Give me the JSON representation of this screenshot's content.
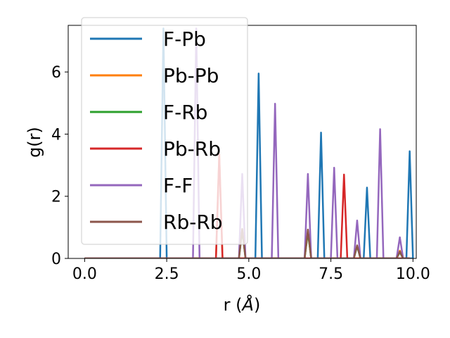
{
  "chart_data": {
    "type": "line",
    "title": "",
    "xlabel": "r (",
    "xlabel_unit": "Å",
    "xlabel_close": ")",
    "ylabel": "g(r)",
    "xlim": [
      -0.5,
      10.1
    ],
    "ylim": [
      0,
      7.5
    ],
    "xticks": [
      0.0,
      2.5,
      5.0,
      7.5,
      10.0
    ],
    "xtick_labels": [
      "0.0",
      "2.5",
      "5.0",
      "7.5",
      "10.0"
    ],
    "yticks": [
      0,
      2,
      4,
      6
    ],
    "ytick_labels": [
      "0",
      "2",
      "4",
      "6"
    ],
    "grid": false,
    "legend_position": "top-left",
    "series": [
      {
        "name": "F-Pb",
        "color": "#1f77b4",
        "peaks": [
          [
            2.4,
            7.4
          ],
          [
            5.3,
            5.95
          ],
          [
            7.2,
            4.05
          ],
          [
            8.6,
            2.28
          ],
          [
            9.9,
            3.45
          ]
        ]
      },
      {
        "name": "Pb-Pb",
        "color": "#ff7f0e",
        "peaks": [
          [
            4.1,
            3.35
          ],
          [
            6.8,
            0.85
          ],
          [
            9.6,
            0.25
          ]
        ]
      },
      {
        "name": "F-Rb",
        "color": "#2ca02c",
        "peaks": [
          [
            4.8,
            0.9
          ],
          [
            6.8,
            0.85
          ],
          [
            8.3,
            0.4
          ],
          [
            9.6,
            0.2
          ]
        ]
      },
      {
        "name": "Pb-Rb",
        "color": "#d62728",
        "peaks": [
          [
            4.1,
            3.35
          ],
          [
            7.9,
            2.7
          ]
        ]
      },
      {
        "name": "F-F",
        "color": "#9467bd",
        "peaks": [
          [
            3.4,
            7.4
          ],
          [
            4.8,
            2.72
          ],
          [
            5.8,
            4.98
          ],
          [
            6.8,
            2.72
          ],
          [
            7.6,
            2.92
          ],
          [
            8.3,
            1.22
          ],
          [
            9.0,
            4.16
          ],
          [
            9.6,
            0.68
          ]
        ]
      },
      {
        "name": "Rb-Rb",
        "color": "#8c564b",
        "peaks": [
          [
            4.8,
            0.95
          ],
          [
            6.8,
            0.93
          ],
          [
            8.3,
            0.42
          ],
          [
            9.6,
            0.22
          ]
        ]
      }
    ]
  }
}
